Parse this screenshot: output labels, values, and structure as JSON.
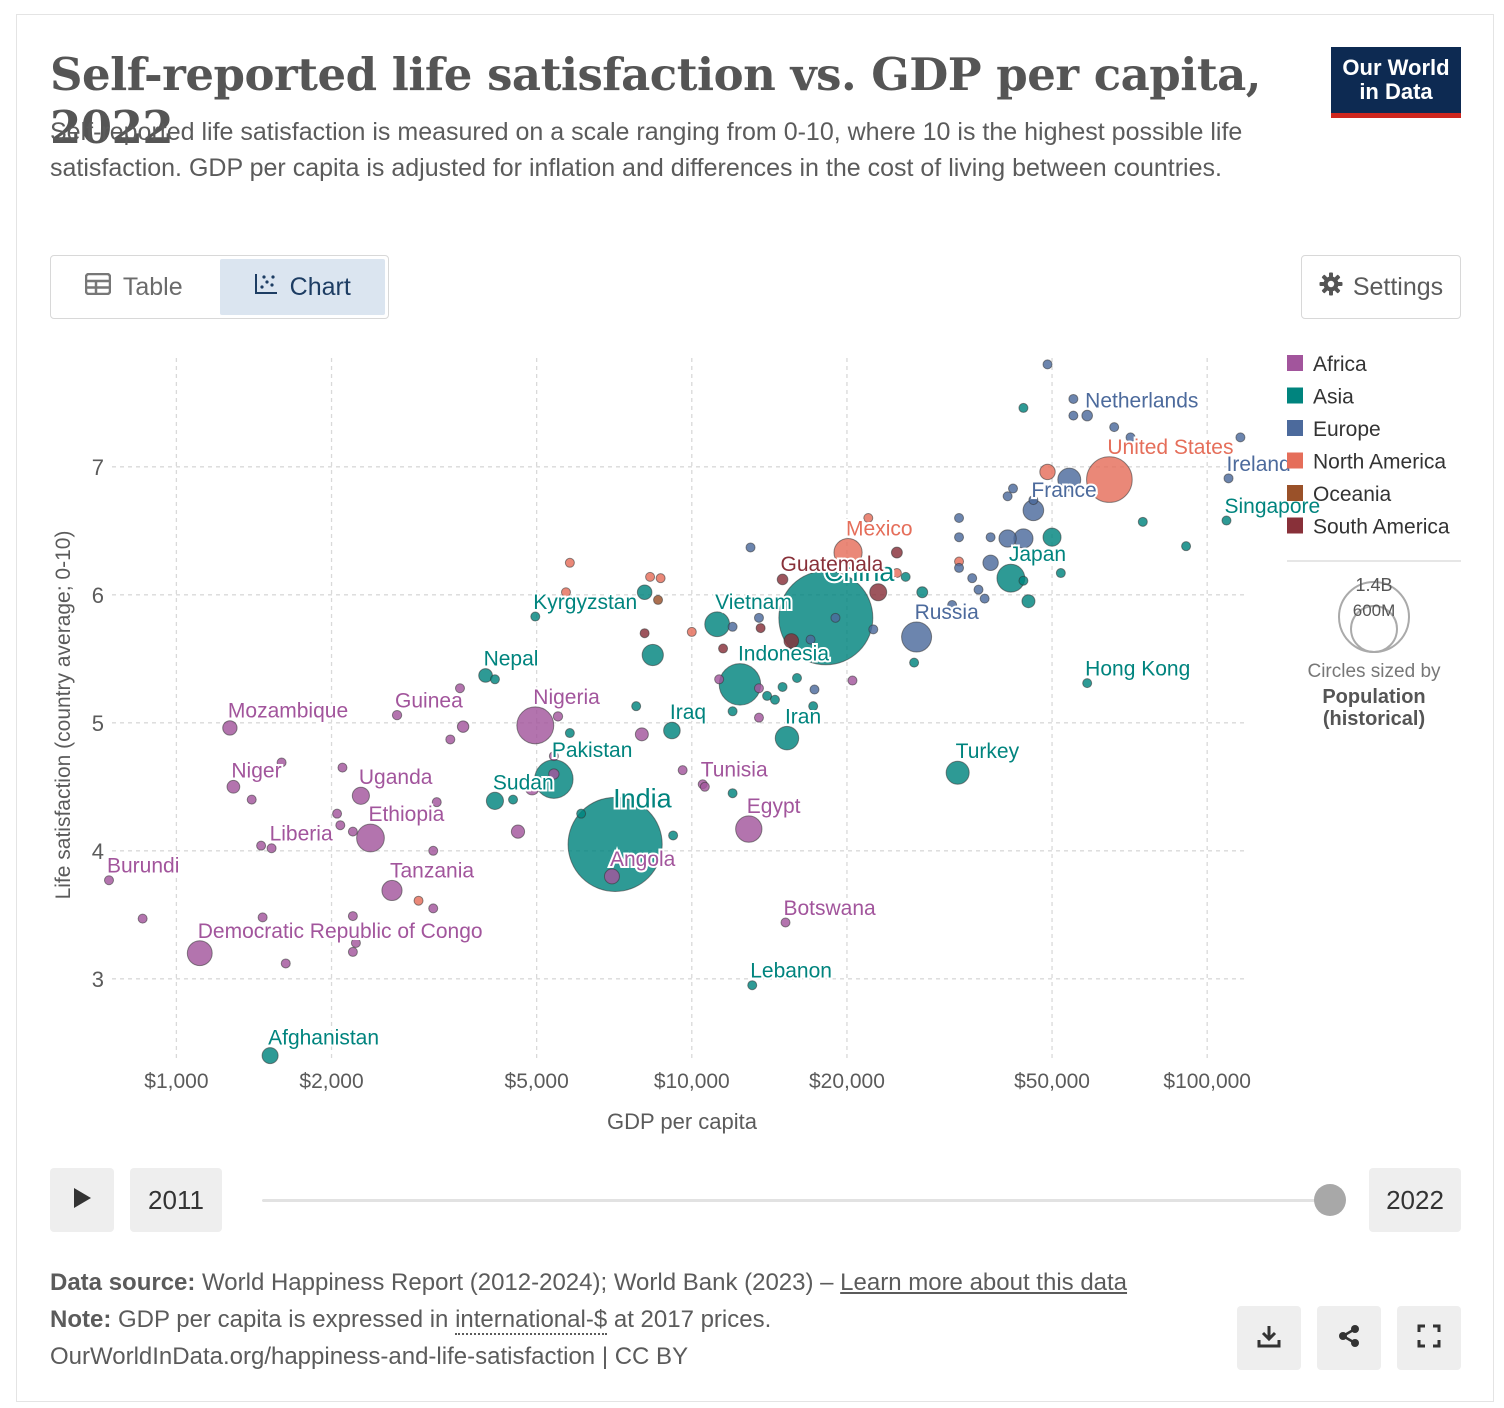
{
  "header": {
    "title": "Self-reported life satisfaction vs. GDP per capita, 2022",
    "subtitle": "Self-reported life satisfaction is measured on a scale ranging from 0-10, where 10 is the highest possible life satisfaction. GDP per capita is adjusted for inflation and differences in the cost of living between countries.",
    "logo_line1": "Our World",
    "logo_line2": "in Data"
  },
  "tabs": {
    "table_label": "Table",
    "chart_label": "Chart",
    "settings_label": "Settings"
  },
  "legend": {
    "size_big": "1.4B",
    "size_small": "600M",
    "size_caption": "Circles sized by",
    "size_metric_1": "Population",
    "size_metric_2": "(historical)"
  },
  "timeline": {
    "start_year": "2011",
    "end_year": "2022",
    "progress": 1.0
  },
  "footer": {
    "source_label": "Data source:",
    "source_text": " World Happiness Report (2012-2024); World Bank (2023) – ",
    "source_link": "Learn more about this data",
    "note_label": "Note:",
    "note_text_1": " GDP per capita is expressed in ",
    "note_link": "international-$",
    "note_text_2": " at 2017 prices.",
    "url_text": "OurWorldInData.org/happiness-and-life-satisfaction | CC BY"
  },
  "icons": {
    "table": "table-icon",
    "chart": "chart-icon",
    "settings": "gear-icon",
    "play": "play-icon",
    "download": "download-icon",
    "share": "share-icon",
    "fullscreen": "fullscreen-icon"
  },
  "chart_data": {
    "type": "scatter",
    "xlabel": "GDP per capita",
    "ylabel": "Life satisfaction (country average; 0-10)",
    "x_scale": "log",
    "xlim": [
      750,
      120000
    ],
    "ylim": [
      2.35,
      7.85
    ],
    "x_ticks": [
      {
        "value": 1000,
        "label": "$1,000"
      },
      {
        "value": 2000,
        "label": "$2,000"
      },
      {
        "value": 5000,
        "label": "$5,000"
      },
      {
        "value": 10000,
        "label": "$10,000"
      },
      {
        "value": 20000,
        "label": "$20,000"
      },
      {
        "value": 50000,
        "label": "$50,000"
      },
      {
        "value": 100000,
        "label": "$100,000"
      }
    ],
    "y_ticks": [
      3,
      4,
      5,
      6,
      7
    ],
    "grid": true,
    "legend_position": "right",
    "regions": [
      {
        "name": "Africa",
        "color": "#a2559c"
      },
      {
        "name": "Asia",
        "color": "#00847e"
      },
      {
        "name": "Europe",
        "color": "#4c6a9c"
      },
      {
        "name": "North America",
        "color": "#e56e5a"
      },
      {
        "name": "Oceania",
        "color": "#9a5129"
      },
      {
        "name": "South America",
        "color": "#883039"
      }
    ],
    "labeled_points": [
      {
        "label": "China",
        "region": "Asia",
        "x": 18200,
        "y": 5.82,
        "pop_m": 1412
      },
      {
        "label": "India",
        "region": "Asia",
        "x": 7100,
        "y": 4.05,
        "pop_m": 1417
      },
      {
        "label": "United States",
        "region": "North America",
        "x": 64600,
        "y": 6.9,
        "pop_m": 333
      },
      {
        "label": "Indonesia",
        "region": "Asia",
        "x": 12400,
        "y": 5.3,
        "pop_m": 275
      },
      {
        "label": "Pakistan",
        "region": "Asia",
        "x": 5400,
        "y": 4.56,
        "pop_m": 236
      },
      {
        "label": "Nigeria",
        "region": "Africa",
        "x": 4970,
        "y": 4.98,
        "pop_m": 218
      },
      {
        "label": "Russia",
        "region": "Europe",
        "x": 27300,
        "y": 5.67,
        "pop_m": 144
      },
      {
        "label": "Mexico",
        "region": "North America",
        "x": 20100,
        "y": 6.33,
        "pop_m": 127
      },
      {
        "label": "Japan",
        "region": "Asia",
        "x": 41600,
        "y": 6.13,
        "pop_m": 124
      },
      {
        "label": "Ethiopia",
        "region": "Africa",
        "x": 2380,
        "y": 4.1,
        "pop_m": 123
      },
      {
        "label": "Egypt",
        "region": "Africa",
        "x": 12900,
        "y": 4.17,
        "pop_m": 111
      },
      {
        "label": "Vietnam",
        "region": "Asia",
        "x": 11200,
        "y": 5.77,
        "pop_m": 98
      },
      {
        "label": "Democratic Republic of Congo",
        "region": "Africa",
        "x": 1110,
        "y": 3.2,
        "pop_m": 99
      },
      {
        "label": "Turkey",
        "region": "Asia",
        "x": 32800,
        "y": 4.61,
        "pop_m": 85
      },
      {
        "label": "Iran",
        "region": "Asia",
        "x": 15300,
        "y": 4.88,
        "pop_m": 88
      },
      {
        "label": "France",
        "region": "Europe",
        "x": 46000,
        "y": 6.66,
        "pop_m": 68
      },
      {
        "label": "Tanzania",
        "region": "Africa",
        "x": 2620,
        "y": 3.69,
        "pop_m": 65
      },
      {
        "label": "Uganda",
        "region": "Africa",
        "x": 2280,
        "y": 4.43,
        "pop_m": 47
      },
      {
        "label": "Sudan",
        "region": "Asia",
        "x": 4150,
        "y": 4.39,
        "pop_m": 47
      },
      {
        "label": "Iraq",
        "region": "Asia",
        "x": 9150,
        "y": 4.94,
        "pop_m": 44
      },
      {
        "label": "Angola",
        "region": "Africa",
        "x": 7000,
        "y": 3.8,
        "pop_m": 36
      },
      {
        "label": "Mozambique",
        "region": "Africa",
        "x": 1270,
        "y": 4.96,
        "pop_m": 33
      },
      {
        "label": "Nepal",
        "region": "Asia",
        "x": 3980,
        "y": 5.37,
        "pop_m": 30
      },
      {
        "label": "Niger",
        "region": "Africa",
        "x": 1290,
        "y": 4.5,
        "pop_m": 26
      },
      {
        "label": "Afghanistan",
        "region": "Asia",
        "x": 1520,
        "y": 2.4,
        "pop_m": 41
      },
      {
        "label": "Guatemala",
        "region": "South America",
        "x": 15000,
        "y": 6.12,
        "pop_m": 18
      },
      {
        "label": "Guinea",
        "region": "Africa",
        "x": 2680,
        "y": 5.06,
        "pop_m": 14
      },
      {
        "label": "Burundi",
        "region": "Africa",
        "x": 740,
        "y": 3.77,
        "pop_m": 13
      },
      {
        "label": "Tunisia",
        "region": "Africa",
        "x": 10500,
        "y": 4.52,
        "pop_m": 12
      },
      {
        "label": "Netherlands",
        "region": "Europe",
        "x": 58500,
        "y": 7.4,
        "pop_m": 18
      },
      {
        "label": "Kyrgyzstan",
        "region": "Asia",
        "x": 4970,
        "y": 5.83,
        "pop_m": 7
      },
      {
        "label": "Liberia",
        "region": "Africa",
        "x": 1530,
        "y": 4.02,
        "pop_m": 5
      },
      {
        "label": "Botswana",
        "region": "Africa",
        "x": 15200,
        "y": 3.44,
        "pop_m": 2.6
      },
      {
        "label": "Lebanon",
        "region": "Asia",
        "x": 13100,
        "y": 2.95,
        "pop_m": 5.5
      },
      {
        "label": "Hong Kong",
        "region": "Asia",
        "x": 58500,
        "y": 5.31,
        "pop_m": 7.3
      },
      {
        "label": "Singapore",
        "region": "Asia",
        "x": 109000,
        "y": 6.58,
        "pop_m": 5.6
      },
      {
        "label": "Ireland",
        "region": "Europe",
        "x": 110000,
        "y": 6.91,
        "pop_m": 5.1
      }
    ],
    "unlabeled_points": [
      {
        "region": "Europe",
        "x": 49000,
        "y": 7.8,
        "pop_m": 5.5
      },
      {
        "region": "Europe",
        "x": 55000,
        "y": 7.53,
        "pop_m": 6
      },
      {
        "region": "Europe",
        "x": 55000,
        "y": 7.4,
        "pop_m": 6
      },
      {
        "region": "Asia",
        "x": 44000,
        "y": 7.46,
        "pop_m": 9
      },
      {
        "region": "Europe",
        "x": 66000,
        "y": 7.31,
        "pop_m": 5.5
      },
      {
        "region": "Europe",
        "x": 71000,
        "y": 7.23,
        "pop_m": 9
      },
      {
        "region": "Europe",
        "x": 116000,
        "y": 7.23,
        "pop_m": 0.6
      },
      {
        "region": "North America",
        "x": 49000,
        "y": 6.96,
        "pop_m": 38
      },
      {
        "region": "Europe",
        "x": 54000,
        "y": 6.9,
        "pop_m": 84
      },
      {
        "region": "Europe",
        "x": 42000,
        "y": 6.83,
        "pop_m": 4
      },
      {
        "region": "Europe",
        "x": 41000,
        "y": 6.77,
        "pop_m": 10
      },
      {
        "region": "Europe",
        "x": 46000,
        "y": 6.74,
        "pop_m": 9
      },
      {
        "region": "Europe",
        "x": 33000,
        "y": 6.6,
        "pop_m": 10
      },
      {
        "region": "North America",
        "x": 22000,
        "y": 6.6,
        "pop_m": 5
      },
      {
        "region": "Europe",
        "x": 38000,
        "y": 6.45,
        "pop_m": 2
      },
      {
        "region": "Europe",
        "x": 44000,
        "y": 6.44,
        "pop_m": 59
      },
      {
        "region": "Europe",
        "x": 41000,
        "y": 6.44,
        "pop_m": 48
      },
      {
        "region": "Asia",
        "x": 50000,
        "y": 6.45,
        "pop_m": 52
      },
      {
        "region": "Europe",
        "x": 33000,
        "y": 6.45,
        "pop_m": 4
      },
      {
        "region": "Asia",
        "x": 52000,
        "y": 6.17,
        "pop_m": 9
      },
      {
        "region": "Asia",
        "x": 91000,
        "y": 6.38,
        "pop_m": 4
      },
      {
        "region": "Asia",
        "x": 75000,
        "y": 6.57,
        "pop_m": 3
      },
      {
        "region": "South America",
        "x": 25000,
        "y": 6.33,
        "pop_m": 19
      },
      {
        "region": "Europe",
        "x": 13000,
        "y": 6.37,
        "pop_m": 0.6
      },
      {
        "region": "North America",
        "x": 25000,
        "y": 6.17,
        "pop_m": 5
      },
      {
        "region": "North America",
        "x": 33000,
        "y": 6.26,
        "pop_m": 2
      },
      {
        "region": "Europe",
        "x": 33000,
        "y": 6.21,
        "pop_m": 2
      },
      {
        "region": "Europe",
        "x": 38000,
        "y": 6.25,
        "pop_m": 38
      },
      {
        "region": "Europe",
        "x": 35000,
        "y": 6.13,
        "pop_m": 1.4
      },
      {
        "region": "Asia",
        "x": 26000,
        "y": 6.14,
        "pop_m": 1.5
      },
      {
        "region": "Asia",
        "x": 44000,
        "y": 6.11,
        "pop_m": 10
      },
      {
        "region": "South America",
        "x": 23000,
        "y": 6.02,
        "pop_m": 46
      },
      {
        "region": "Asia",
        "x": 28000,
        "y": 6.02,
        "pop_m": 19
      },
      {
        "region": "Europe",
        "x": 36000,
        "y": 6.04,
        "pop_m": 10
      },
      {
        "region": "Europe",
        "x": 37000,
        "y": 5.97,
        "pop_m": 5
      },
      {
        "region": "Asia",
        "x": 45000,
        "y": 5.95,
        "pop_m": 27
      },
      {
        "region": "Europe",
        "x": 32000,
        "y": 5.92,
        "pop_m": 6
      },
      {
        "region": "North America",
        "x": 5800,
        "y": 6.25,
        "pop_m": 1.5
      },
      {
        "region": "North America",
        "x": 5700,
        "y": 6.02,
        "pop_m": 3
      },
      {
        "region": "North America",
        "x": 8300,
        "y": 6.14,
        "pop_m": 6.8
      },
      {
        "region": "North America",
        "x": 8700,
        "y": 6.13,
        "pop_m": 10
      },
      {
        "region": "Oceania",
        "x": 8600,
        "y": 5.96,
        "pop_m": 3.7
      },
      {
        "region": "Asia",
        "x": 8100,
        "y": 6.02,
        "pop_m": 34
      },
      {
        "region": "South America",
        "x": 8100,
        "y": 5.7,
        "pop_m": 5
      },
      {
        "region": "Asia",
        "x": 8400,
        "y": 5.53,
        "pop_m": 72
      },
      {
        "region": "North America",
        "x": 10000,
        "y": 5.71,
        "pop_m": 2
      },
      {
        "region": "South America",
        "x": 11500,
        "y": 5.58,
        "pop_m": 5
      },
      {
        "region": "Europe",
        "x": 12000,
        "y": 5.75,
        "pop_m": 1.5
      },
      {
        "region": "Europe",
        "x": 13500,
        "y": 5.82,
        "pop_m": 2.8
      },
      {
        "region": "South America",
        "x": 13600,
        "y": 5.74,
        "pop_m": 3.5
      },
      {
        "region": "South America",
        "x": 15600,
        "y": 5.64,
        "pop_m": 34
      },
      {
        "region": "Europe",
        "x": 17000,
        "y": 5.65,
        "pop_m": 2.8
      },
      {
        "region": "Europe",
        "x": 19000,
        "y": 5.82,
        "pop_m": 7
      },
      {
        "region": "Europe",
        "x": 22500,
        "y": 5.73,
        "pop_m": 4
      },
      {
        "region": "Asia",
        "x": 27000,
        "y": 5.47,
        "pop_m": 3.7
      },
      {
        "region": "Africa",
        "x": 13500,
        "y": 5.27,
        "pop_m": 12
      },
      {
        "region": "Africa",
        "x": 11300,
        "y": 5.34,
        "pop_m": 4
      },
      {
        "region": "Asia",
        "x": 14000,
        "y": 5.21,
        "pop_m": 4
      },
      {
        "region": "Asia",
        "x": 14500,
        "y": 5.18,
        "pop_m": 3
      },
      {
        "region": "Asia",
        "x": 16000,
        "y": 5.35,
        "pop_m": 6
      },
      {
        "region": "Europe",
        "x": 17300,
        "y": 5.26,
        "pop_m": 3
      },
      {
        "region": "Asia",
        "x": 15000,
        "y": 5.28,
        "pop_m": 2
      },
      {
        "region": "Asia",
        "x": 17200,
        "y": 5.13,
        "pop_m": 2
      },
      {
        "region": "Africa",
        "x": 20500,
        "y": 5.33,
        "pop_m": 2
      },
      {
        "region": "Asia",
        "x": 7800,
        "y": 5.13,
        "pop_m": 1.5
      },
      {
        "region": "Asia",
        "x": 12000,
        "y": 5.09,
        "pop_m": 3
      },
      {
        "region": "Africa",
        "x": 13500,
        "y": 5.04,
        "pop_m": 2
      },
      {
        "region": "Africa",
        "x": 8000,
        "y": 4.91,
        "pop_m": 27
      },
      {
        "region": "Asia",
        "x": 5800,
        "y": 4.92,
        "pop_m": 2
      },
      {
        "region": "Africa",
        "x": 5500,
        "y": 5.05,
        "pop_m": 14
      },
      {
        "region": "Africa",
        "x": 3600,
        "y": 4.97,
        "pop_m": 21
      },
      {
        "region": "Africa",
        "x": 3400,
        "y": 4.87,
        "pop_m": 3
      },
      {
        "region": "Africa",
        "x": 3550,
        "y": 5.27,
        "pop_m": 4
      },
      {
        "region": "Asia",
        "x": 4150,
        "y": 5.34,
        "pop_m": 5
      },
      {
        "region": "Africa",
        "x": 5400,
        "y": 4.74,
        "pop_m": 3
      },
      {
        "region": "Africa",
        "x": 5400,
        "y": 4.6,
        "pop_m": 17
      },
      {
        "region": "Africa",
        "x": 9600,
        "y": 4.63,
        "pop_m": 0.6
      },
      {
        "region": "Africa",
        "x": 10600,
        "y": 4.5,
        "pop_m": 2
      },
      {
        "region": "Asia",
        "x": 12000,
        "y": 4.45,
        "pop_m": 6
      },
      {
        "region": "Asia",
        "x": 4500,
        "y": 4.4,
        "pop_m": 5
      },
      {
        "region": "Africa",
        "x": 4900,
        "y": 4.49,
        "pop_m": 30
      },
      {
        "region": "Africa",
        "x": 4600,
        "y": 4.15,
        "pop_m": 28
      },
      {
        "region": "Asia",
        "x": 9200,
        "y": 4.12,
        "pop_m": 5
      },
      {
        "region": "Asia",
        "x": 6100,
        "y": 4.29,
        "pop_m": 10
      },
      {
        "region": "Africa",
        "x": 3200,
        "y": 4.38,
        "pop_m": 2.5
      },
      {
        "region": "Africa",
        "x": 3150,
        "y": 4.0,
        "pop_m": 2
      },
      {
        "region": "Africa",
        "x": 2100,
        "y": 4.65,
        "pop_m": 2
      },
      {
        "region": "Africa",
        "x": 1600,
        "y": 4.69,
        "pop_m": 2
      },
      {
        "region": "Africa",
        "x": 1400,
        "y": 4.4,
        "pop_m": 2
      },
      {
        "region": "Africa",
        "x": 2050,
        "y": 4.29,
        "pop_m": 2
      },
      {
        "region": "Africa",
        "x": 2080,
        "y": 4.2,
        "pop_m": 2
      },
      {
        "region": "Africa",
        "x": 2200,
        "y": 4.15,
        "pop_m": 2
      },
      {
        "region": "Africa",
        "x": 1460,
        "y": 4.04,
        "pop_m": 1.5
      },
      {
        "region": "Africa",
        "x": 1470,
        "y": 3.48,
        "pop_m": 2
      },
      {
        "region": "Africa",
        "x": 860,
        "y": 3.47,
        "pop_m": 2
      },
      {
        "region": "Africa",
        "x": 1630,
        "y": 3.12,
        "pop_m": 2
      },
      {
        "region": "Africa",
        "x": 2200,
        "y": 3.49,
        "pop_m": 2
      },
      {
        "region": "Africa",
        "x": 2200,
        "y": 3.21,
        "pop_m": 2
      },
      {
        "region": "Africa",
        "x": 2230,
        "y": 3.28,
        "pop_m": 1.5
      },
      {
        "region": "North America",
        "x": 2950,
        "y": 3.61,
        "pop_m": 2
      },
      {
        "region": "Africa",
        "x": 3150,
        "y": 3.55,
        "pop_m": 2
      }
    ]
  }
}
